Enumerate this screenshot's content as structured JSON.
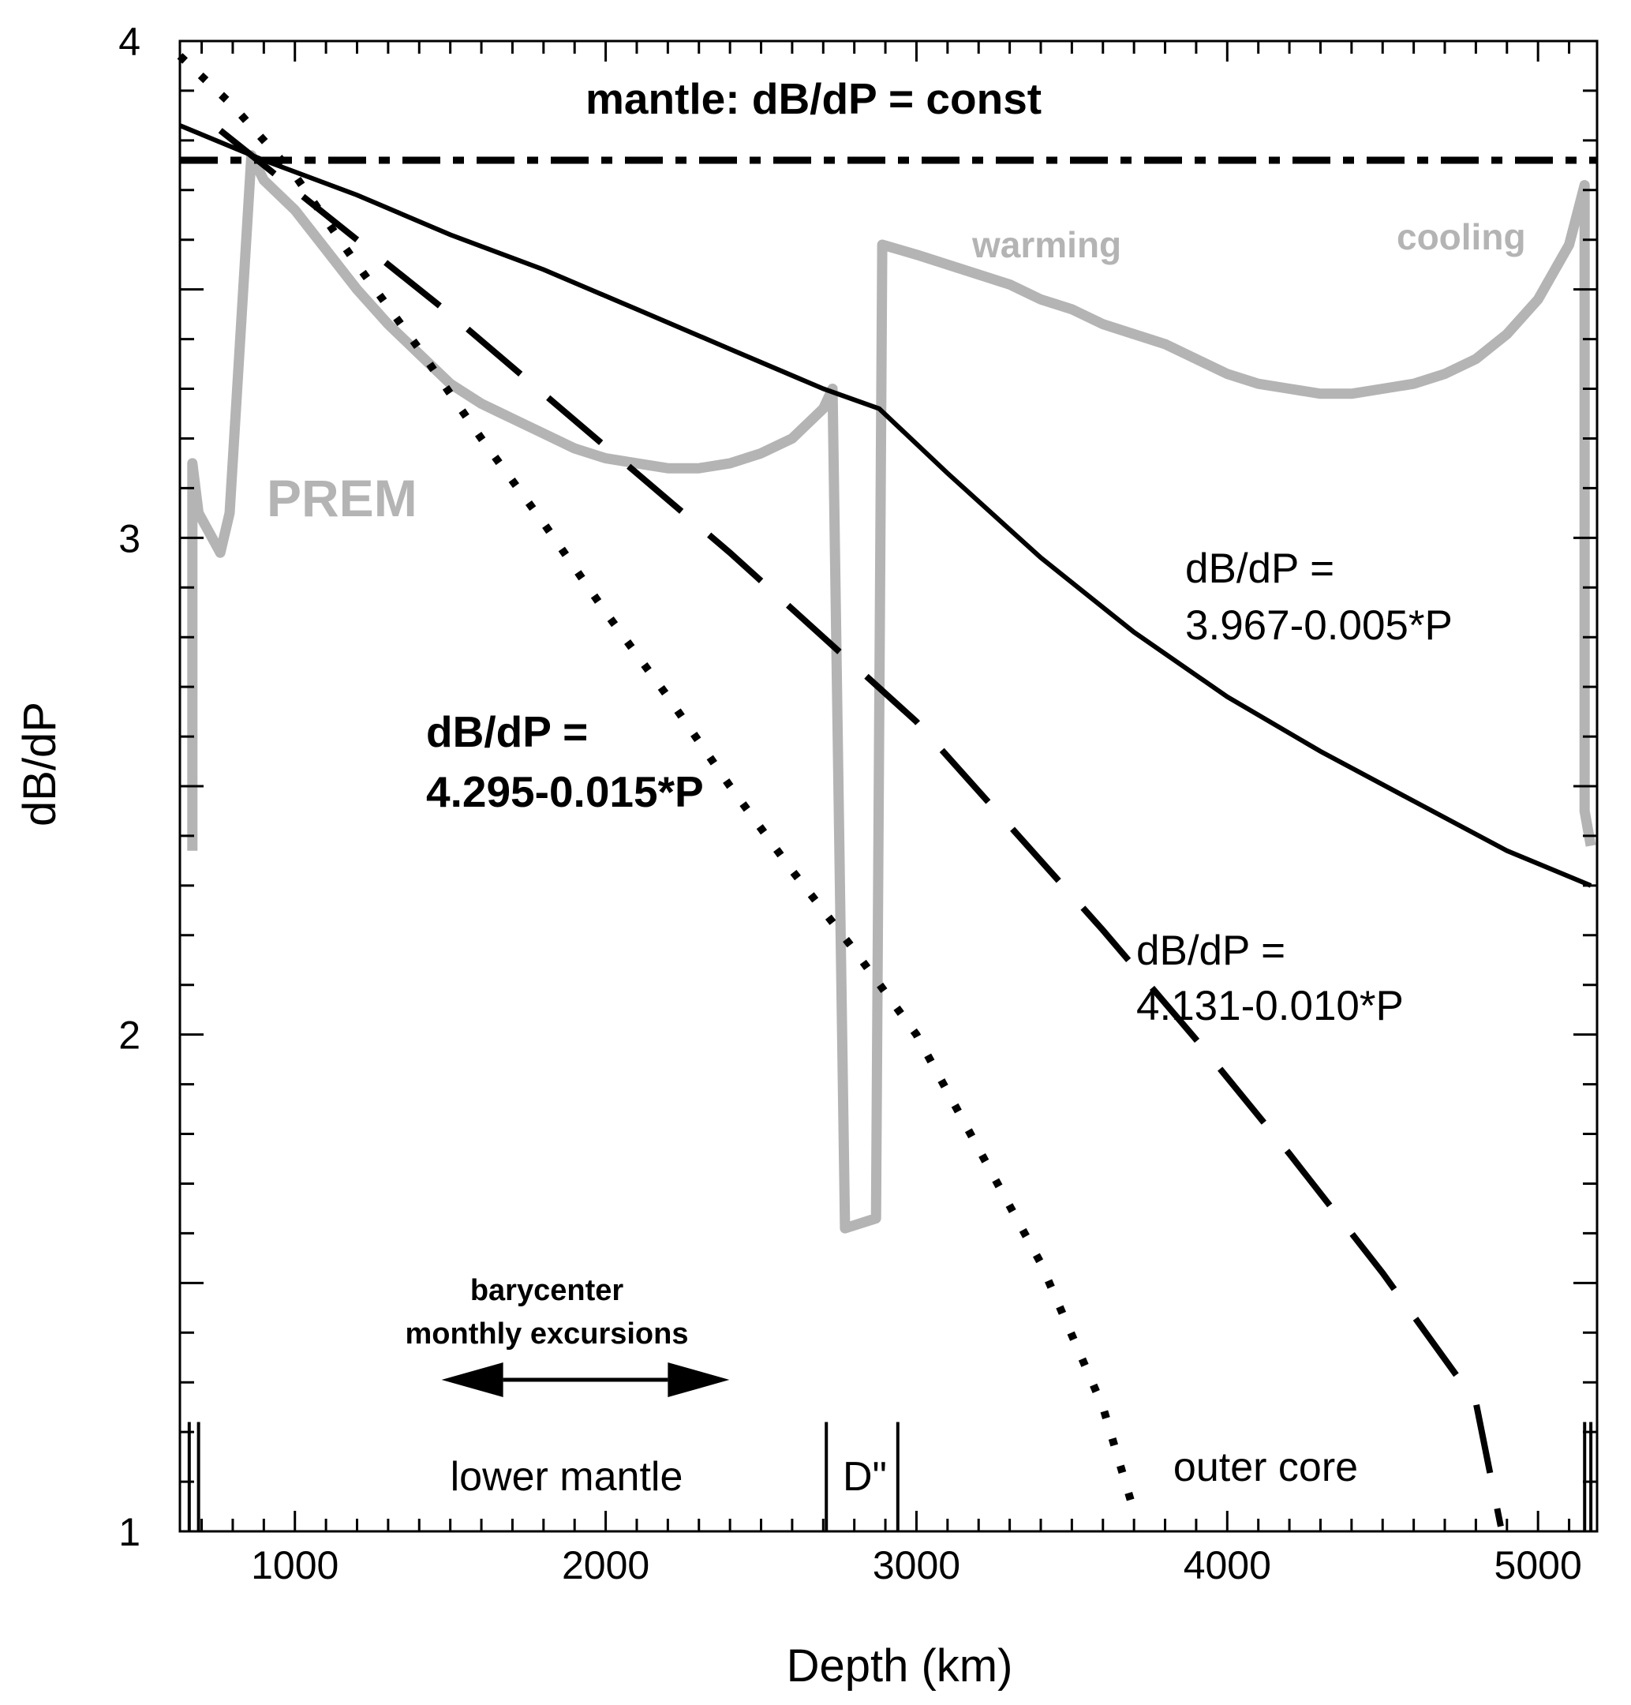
{
  "chart_data": {
    "type": "line",
    "xlabel": "Depth (km)",
    "ylabel": "dB/dP",
    "xlim": [
      630,
      5190
    ],
    "ylim": [
      1,
      4
    ],
    "x_ticks": [
      1000,
      2000,
      3000,
      4000,
      5000
    ],
    "y_ticks": [
      1,
      2,
      3,
      4
    ],
    "series": [
      {
        "name": "PREM",
        "style": "gray-thick",
        "points": [
          [
            670,
            2.37
          ],
          [
            670,
            3.15
          ],
          [
            690,
            3.05
          ],
          [
            760,
            2.97
          ],
          [
            790,
            3.05
          ],
          [
            860,
            3.77
          ],
          [
            900,
            3.72
          ],
          [
            1000,
            3.66
          ],
          [
            1100,
            3.58
          ],
          [
            1200,
            3.5
          ],
          [
            1300,
            3.43
          ],
          [
            1400,
            3.37
          ],
          [
            1500,
            3.31
          ],
          [
            1600,
            3.27
          ],
          [
            1700,
            3.24
          ],
          [
            1800,
            3.21
          ],
          [
            1900,
            3.18
          ],
          [
            2000,
            3.16
          ],
          [
            2100,
            3.15
          ],
          [
            2200,
            3.14
          ],
          [
            2300,
            3.14
          ],
          [
            2400,
            3.15
          ],
          [
            2500,
            3.17
          ],
          [
            2600,
            3.2
          ],
          [
            2700,
            3.26
          ],
          [
            2730,
            3.3
          ],
          [
            2770,
            1.61
          ],
          [
            2870,
            1.63
          ],
          [
            2890,
            3.59
          ],
          [
            3000,
            3.57
          ],
          [
            3100,
            3.55
          ],
          [
            3200,
            3.53
          ],
          [
            3300,
            3.51
          ],
          [
            3400,
            3.48
          ],
          [
            3500,
            3.46
          ],
          [
            3600,
            3.43
          ],
          [
            3700,
            3.41
          ],
          [
            3800,
            3.39
          ],
          [
            3900,
            3.36
          ],
          [
            4000,
            3.33
          ],
          [
            4100,
            3.31
          ],
          [
            4200,
            3.3
          ],
          [
            4300,
            3.29
          ],
          [
            4400,
            3.29
          ],
          [
            4500,
            3.3
          ],
          [
            4600,
            3.31
          ],
          [
            4700,
            3.33
          ],
          [
            4800,
            3.36
          ],
          [
            4900,
            3.41
          ],
          [
            5000,
            3.48
          ],
          [
            5100,
            3.59
          ],
          [
            5150,
            3.71
          ],
          [
            5150,
            2.45
          ],
          [
            5170,
            2.38
          ]
        ]
      },
      {
        "name": "dB/dP = 3.967-0.005*P",
        "style": "solid",
        "points": [
          [
            630,
            3.83
          ],
          [
            900,
            3.76
          ],
          [
            1200,
            3.69
          ],
          [
            1500,
            3.61
          ],
          [
            1800,
            3.54
          ],
          [
            2100,
            3.46
          ],
          [
            2400,
            3.38
          ],
          [
            2700,
            3.3
          ],
          [
            2880,
            3.26
          ],
          [
            3100,
            3.13
          ],
          [
            3400,
            2.96
          ],
          [
            3700,
            2.81
          ],
          [
            4000,
            2.68
          ],
          [
            4300,
            2.57
          ],
          [
            4600,
            2.47
          ],
          [
            4900,
            2.37
          ],
          [
            5170,
            2.3
          ]
        ]
      },
      {
        "name": "dB/dP = 4.131-0.010*P",
        "style": "dashed",
        "points": [
          [
            760,
            3.82
          ],
          [
            900,
            3.75
          ],
          [
            1200,
            3.6
          ],
          [
            1500,
            3.45
          ],
          [
            1800,
            3.29
          ],
          [
            2100,
            3.13
          ],
          [
            2400,
            2.97
          ],
          [
            2700,
            2.8
          ],
          [
            3000,
            2.63
          ],
          [
            3300,
            2.42
          ],
          [
            3600,
            2.21
          ],
          [
            3900,
            1.99
          ],
          [
            4200,
            1.76
          ],
          [
            4500,
            1.52
          ],
          [
            4800,
            1.26
          ],
          [
            4880,
            1.01
          ]
        ]
      },
      {
        "name": "dB/dP = 4.295-0.015*P",
        "style": "dotted",
        "points": [
          [
            630,
            3.97
          ],
          [
            800,
            3.87
          ],
          [
            1000,
            3.73
          ],
          [
            1200,
            3.55
          ],
          [
            1400,
            3.38
          ],
          [
            1600,
            3.2
          ],
          [
            1800,
            3.03
          ],
          [
            2000,
            2.85
          ],
          [
            2200,
            2.68
          ],
          [
            2400,
            2.5
          ],
          [
            2600,
            2.33
          ],
          [
            2800,
            2.17
          ],
          [
            3000,
            2.0
          ],
          [
            3200,
            1.77
          ],
          [
            3400,
            1.54
          ],
          [
            3600,
            1.25
          ],
          [
            3700,
            1.04
          ]
        ]
      },
      {
        "name": "mantle: dB/dP = const",
        "style": "dash-dot",
        "points": [
          [
            630,
            3.76
          ],
          [
            5190,
            3.76
          ]
        ]
      }
    ],
    "annotations": {
      "mantle_const": "mantle: dB/dP = const",
      "prem": "PREM",
      "warming": "warming",
      "cooling": "cooling",
      "solid_line1": "dB/dP =",
      "solid_line2": "3.967-0.005*P",
      "dashed_line1": "dB/dP =",
      "dashed_line2": "4.131-0.010*P",
      "dotted_line1": "dB/dP =",
      "dotted_line2": "4.295-0.015*P",
      "barycenter_line1": "barycenter",
      "barycenter_line2": "monthly excursions",
      "lower_mantle": "lower mantle",
      "d_double_prime": "D\"",
      "outer_core": "outer core"
    },
    "barycenter_range": [
      1670,
      2200
    ],
    "boundaries": [
      660,
      690,
      2710,
      2940,
      5150,
      5170
    ]
  }
}
